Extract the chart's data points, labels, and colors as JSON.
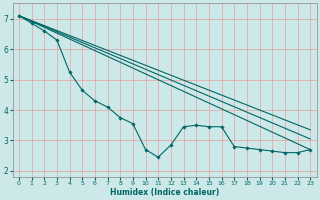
{
  "xlabel": "Humidex (Indice chaleur)",
  "xlim": [
    -0.5,
    23.5
  ],
  "ylim": [
    1.8,
    7.5
  ],
  "yticks": [
    2,
    3,
    4,
    5,
    6,
    7
  ],
  "xticks": [
    0,
    1,
    2,
    3,
    4,
    5,
    6,
    7,
    8,
    9,
    10,
    11,
    12,
    13,
    14,
    15,
    16,
    17,
    18,
    19,
    20,
    21,
    22,
    23
  ],
  "bg_color": "#cce8e8",
  "line_color": "#006666",
  "grid_color": "#e8a0a0",
  "main_line": {
    "x": [
      0,
      1,
      2,
      3,
      4,
      5,
      6,
      7,
      8,
      9,
      10,
      11,
      12,
      13,
      14,
      15,
      16,
      17,
      18,
      19,
      20,
      21,
      22,
      23
    ],
    "y": [
      7.1,
      6.85,
      6.6,
      6.3,
      5.25,
      4.65,
      4.3,
      4.1,
      3.75,
      3.55,
      2.7,
      2.45,
      2.85,
      3.45,
      3.5,
      3.45,
      3.45,
      2.8,
      2.75,
      2.7,
      2.65,
      2.6,
      2.6,
      2.7
    ]
  },
  "straight_lines": [
    {
      "x": [
        0,
        23
      ],
      "y": [
        7.1,
        2.7
      ]
    },
    {
      "x": [
        0,
        23
      ],
      "y": [
        7.1,
        3.05
      ]
    },
    {
      "x": [
        0,
        23
      ],
      "y": [
        7.1,
        3.35
      ]
    }
  ]
}
